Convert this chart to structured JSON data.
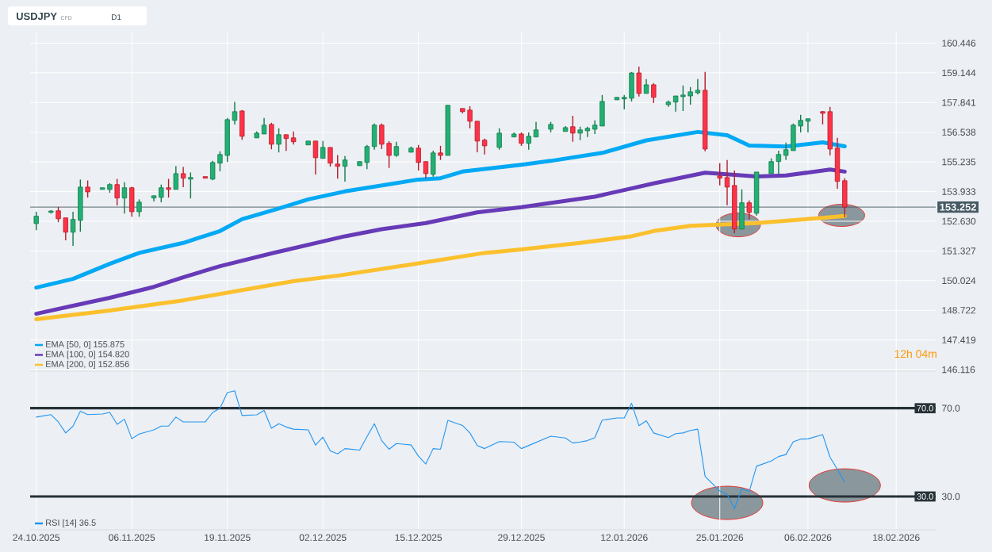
{
  "chart_data": [
    {
      "type": "candlestick",
      "title": "USDJPY",
      "subtitle": "CFD",
      "annotations": [
        "D1",
        "12h 04m"
      ],
      "x": [
        "2025-10-24",
        "2025-10-26",
        "2025-10-27",
        "2025-10-28",
        "2025-10-29",
        "2025-10-30",
        "2025-10-31",
        "2025-11-02",
        "2025-11-03",
        "2025-11-04",
        "2025-11-05",
        "2025-11-06",
        "2025-11-07",
        "2025-11-09",
        "2025-11-10",
        "2025-11-11",
        "2025-11-12",
        "2025-11-13",
        "2025-11-14",
        "2025-11-16",
        "2025-11-17",
        "2025-11-18",
        "2025-11-19",
        "2025-11-20",
        "2025-11-21",
        "2025-11-23",
        "2025-11-24",
        "2025-11-25",
        "2025-11-26",
        "2025-11-27",
        "2025-11-28",
        "2025-11-30",
        "2025-12-01",
        "2025-12-02",
        "2025-12-03",
        "2025-12-04",
        "2025-12-05",
        "2025-12-07",
        "2025-12-08",
        "2025-12-09",
        "2025-12-10",
        "2025-12-11",
        "2025-12-12",
        "2025-12-14",
        "2025-12-15",
        "2025-12-16",
        "2025-12-17",
        "2025-12-18",
        "2025-12-19",
        "2025-12-21",
        "2025-12-22",
        "2025-12-23",
        "2025-12-24",
        "2025-12-26",
        "2025-12-28",
        "2025-12-29",
        "2025-12-30",
        "2025-12-31",
        "2026-01-02",
        "2026-01-04",
        "2026-01-05",
        "2026-01-06",
        "2026-01-07",
        "2026-01-08",
        "2026-01-09",
        "2026-01-11",
        "2026-01-12",
        "2026-01-13",
        "2026-01-14",
        "2026-01-15",
        "2026-01-16",
        "2026-01-18",
        "2026-01-19",
        "2026-01-20",
        "2026-01-21",
        "2026-01-22",
        "2026-01-23",
        "2026-01-25",
        "2026-01-26",
        "2026-01-27",
        "2026-01-28",
        "2026-01-29",
        "2026-01-30",
        "2026-02-01",
        "2026-02-02",
        "2026-02-03",
        "2026-02-04",
        "2026-02-05",
        "2026-02-06",
        "2026-02-08",
        "2026-02-09",
        "2026-02-10",
        "2026-02-11"
      ],
      "ohlc": [
        [
          152.53,
          153.05,
          152.24,
          152.85
        ],
        [
          153.02,
          153.12,
          152.97,
          153.08
        ],
        [
          153.09,
          153.26,
          152.59,
          152.74
        ],
        [
          152.78,
          152.78,
          151.79,
          152.15
        ],
        [
          152.15,
          153.05,
          151.55,
          152.71
        ],
        [
          152.67,
          154.46,
          152.17,
          154.13
        ],
        [
          154.13,
          154.42,
          153.67,
          153.92
        ],
        [
          154.03,
          154.1,
          154.03,
          154.1
        ],
        [
          154.03,
          154.3,
          153.88,
          154.24
        ],
        [
          154.24,
          154.49,
          153.32,
          153.65
        ],
        [
          153.65,
          154.34,
          152.97,
          154.1
        ],
        [
          154.1,
          154.14,
          152.83,
          153.05
        ],
        [
          153.05,
          153.59,
          152.83,
          153.47
        ],
        [
          153.65,
          153.75,
          153.5,
          153.75
        ],
        [
          153.68,
          154.24,
          153.46,
          154.1
        ],
        [
          154.1,
          154.49,
          153.67,
          154.03
        ],
        [
          154.03,
          155.05,
          154.03,
          154.72
        ],
        [
          154.72,
          155.01,
          154.13,
          154.52
        ],
        [
          154.48,
          154.77,
          153.63,
          154.55
        ],
        [
          154.59,
          154.59,
          154.52,
          154.52
        ],
        [
          154.48,
          155.28,
          154.43,
          155.21
        ],
        [
          155.18,
          155.7,
          154.82,
          155.56
        ],
        [
          155.52,
          157.16,
          155.23,
          157.09
        ],
        [
          157.06,
          157.87,
          156.88,
          157.44
        ],
        [
          157.47,
          157.51,
          156.21,
          156.36
        ],
        [
          156.29,
          156.57,
          156.29,
          156.5
        ],
        [
          156.46,
          157.16,
          156.46,
          156.85
        ],
        [
          156.88,
          156.95,
          155.79,
          156.01
        ],
        [
          156.01,
          156.71,
          155.65,
          156.43
        ],
        [
          156.43,
          156.43,
          155.72,
          156.26
        ],
        [
          156.29,
          156.57,
          156.0,
          156.12
        ],
        [
          155.98,
          156.15,
          155.98,
          156.15
        ],
        [
          156.15,
          156.15,
          154.68,
          155.42
        ],
        [
          155.39,
          156.15,
          155.39,
          155.87
        ],
        [
          155.87,
          155.87,
          155.03,
          155.18
        ],
        [
          155.14,
          155.54,
          154.5,
          155.04
        ],
        [
          155.04,
          155.49,
          154.37,
          155.32
        ],
        [
          155.07,
          155.25,
          155.07,
          155.25
        ],
        [
          155.21,
          155.98,
          154.92,
          155.91
        ],
        [
          155.91,
          156.92,
          155.77,
          156.85
        ],
        [
          156.85,
          156.92,
          155.8,
          156.01
        ],
        [
          156.05,
          156.15,
          154.97,
          155.52
        ],
        [
          155.52,
          156.12,
          155.46,
          155.91
        ],
        [
          155.66,
          155.91,
          155.66,
          155.84
        ],
        [
          155.84,
          155.98,
          154.86,
          155.21
        ],
        [
          155.25,
          155.25,
          154.52,
          154.72
        ],
        [
          154.69,
          155.73,
          154.59,
          155.63
        ],
        [
          155.63,
          155.94,
          155.32,
          155.52
        ],
        [
          155.52,
          157.72,
          155.52,
          157.72
        ],
        [
          157.58,
          157.58,
          157.37,
          157.44
        ],
        [
          157.51,
          157.68,
          156.71,
          157.02
        ],
        [
          157.02,
          157.02,
          155.66,
          156.15
        ],
        [
          156.19,
          156.26,
          155.56,
          155.94
        ],
        [
          155.87,
          156.71,
          155.77,
          156.5
        ],
        [
          156.33,
          156.53,
          156.33,
          156.46
        ],
        [
          156.46,
          156.53,
          155.94,
          156.05
        ],
        [
          156.05,
          156.53,
          155.77,
          156.36
        ],
        [
          156.33,
          156.99,
          156.33,
          156.64
        ],
        [
          156.67,
          156.99,
          156.53,
          156.88
        ],
        [
          156.57,
          156.81,
          156.57,
          156.74
        ],
        [
          156.78,
          157.26,
          156.12,
          156.5
        ],
        [
          156.5,
          156.78,
          156.19,
          156.64
        ],
        [
          156.6,
          156.78,
          156.33,
          156.71
        ],
        [
          156.67,
          157.06,
          156.46,
          156.85
        ],
        [
          156.81,
          158.17,
          156.81,
          157.89
        ],
        [
          157.96,
          158.07,
          157.96,
          158.07
        ],
        [
          158.0,
          158.17,
          157.54,
          158.07
        ],
        [
          158.03,
          159.18,
          157.89,
          159.14
        ],
        [
          159.14,
          159.42,
          158.1,
          158.24
        ],
        [
          158.24,
          158.87,
          158.24,
          158.62
        ],
        [
          158.62,
          158.69,
          157.82,
          158.07
        ],
        [
          157.75,
          157.93,
          157.65,
          157.86
        ],
        [
          157.86,
          158.13,
          157.44,
          158.13
        ],
        [
          158.1,
          158.59,
          157.47,
          158.17
        ],
        [
          158.13,
          158.52,
          157.75,
          158.31
        ],
        [
          158.27,
          158.87,
          158.2,
          158.38
        ],
        [
          158.38,
          159.18,
          155.7,
          155.8
        ],
        [
          154.62,
          155.18,
          154.2,
          154.52
        ],
        [
          154.55,
          155.32,
          153.33,
          154.13
        ],
        [
          154.2,
          154.86,
          152.11,
          152.29
        ],
        [
          152.29,
          154.03,
          152.29,
          153.44
        ],
        [
          153.44,
          153.54,
          152.71,
          153.02
        ],
        [
          152.98,
          154.79,
          152.88,
          154.79
        ],
        [
          154.72,
          155.39,
          154.72,
          155.25
        ],
        [
          155.25,
          155.73,
          154.72,
          155.56
        ],
        [
          155.52,
          156.08,
          155.32,
          155.77
        ],
        [
          155.73,
          156.92,
          155.73,
          156.85
        ],
        [
          156.81,
          157.3,
          156.53,
          157.06
        ],
        [
          157.02,
          157.13,
          156.53,
          157.13
        ],
        [
          157.44,
          157.47,
          156.88,
          157.37
        ],
        [
          157.44,
          157.65,
          155.52,
          155.8
        ],
        [
          155.84,
          156.29,
          154.06,
          154.38
        ],
        [
          154.41,
          154.52,
          152.81,
          153.252
        ]
      ],
      "series": [
        {
          "name": "EMA [50, 0] 155.875",
          "color": "#03a9f4",
          "type": "line",
          "x": [
            "2025-10-24",
            "2025-10-29",
            "2025-11-03",
            "2025-11-07",
            "2025-11-13",
            "2025-11-18",
            "2025-11-21",
            "2025-11-26",
            "2025-11-30",
            "2025-12-05",
            "2025-12-15",
            "2025-12-18",
            "2025-12-21",
            "2025-12-29",
            "2026-01-02",
            "2026-01-09",
            "2026-01-15",
            "2026-01-22",
            "2026-01-26",
            "2026-01-29",
            "2026-02-03",
            "2026-02-08",
            "2026-02-11"
          ],
          "values": [
            149.72,
            150.1,
            150.76,
            151.24,
            151.68,
            152.2,
            152.72,
            153.19,
            153.59,
            153.94,
            154.46,
            154.52,
            154.81,
            155.11,
            155.28,
            155.63,
            156.18,
            156.55,
            156.41,
            155.95,
            155.91,
            156.09,
            155.92
          ]
        },
        {
          "name": "EMA [100, 0] 154.820",
          "color": "#673ab7",
          "type": "line",
          "x": [
            "2025-10-24",
            "2025-10-29",
            "2025-11-03",
            "2025-11-09",
            "2025-11-13",
            "2025-11-18",
            "2025-11-25",
            "2025-12-05",
            "2025-12-10",
            "2025-12-16",
            "2025-12-23",
            "2025-12-29",
            "2026-01-08",
            "2026-01-12",
            "2026-01-16",
            "2026-01-23",
            "2026-01-30",
            "2026-02-03",
            "2026-02-09",
            "2026-02-11"
          ],
          "values": [
            148.57,
            148.92,
            149.27,
            149.75,
            150.17,
            150.66,
            151.22,
            151.97,
            152.28,
            152.55,
            153.02,
            153.25,
            153.71,
            154.0,
            154.29,
            154.76,
            154.6,
            154.64,
            154.9,
            154.81
          ]
        },
        {
          "name": "EMA [200, 0] 152.856",
          "color": "#fbc02d",
          "type": "line",
          "x": [
            "2025-10-24",
            "2025-11-03",
            "2025-11-13",
            "2025-11-18",
            "2025-11-28",
            "2025-12-04",
            "2025-12-14",
            "2025-12-24",
            "2025-12-29",
            "2026-01-06",
            "2026-01-13",
            "2026-01-16",
            "2026-01-21",
            "2026-01-30",
            "2026-02-08",
            "2026-02-11"
          ],
          "values": [
            148.33,
            148.71,
            149.16,
            149.44,
            150.0,
            150.24,
            150.73,
            151.24,
            151.39,
            151.68,
            151.97,
            152.2,
            152.43,
            152.55,
            152.78,
            152.86
          ]
        }
      ],
      "xlim": [
        "2025-10-23T04:00",
        "2026-02-23T09:00"
      ],
      "xticks": [
        "2025-10-24",
        "2025-11-06",
        "2025-11-19",
        "2025-12-02",
        "2025-12-15",
        "2025-12-29",
        "2026-01-12",
        "2026-01-25",
        "2026-02-06",
        "2026-02-18"
      ],
      "ylim": [
        146.05,
        160.95
      ],
      "yticks": [
        146.116,
        147.419,
        148.722,
        150.024,
        151.327,
        {
          "value": 152.63,
          "label": "152.630"
        },
        153.933,
        155.235,
        156.538,
        157.841,
        159.144,
        160.446
      ],
      "ref_lines": [
        {
          "axis": "y",
          "value": 153.252,
          "label": "153.252",
          "color": "#455a64"
        }
      ],
      "grid": true,
      "legend": "bottom left",
      "tick_labels": "y"
    },
    {
      "type": "line",
      "series": [
        {
          "name": "RSI [14] 36.5",
          "color": "#2196f3",
          "x": [
            "2025-10-24",
            "2025-10-26",
            "2025-10-27",
            "2025-10-28",
            "2025-10-29",
            "2025-10-30",
            "2025-10-31",
            "2025-11-02",
            "2025-11-03",
            "2025-11-04",
            "2025-11-05",
            "2025-11-06",
            "2025-11-07",
            "2025-11-09",
            "2025-11-10",
            "2025-11-11",
            "2025-11-12",
            "2025-11-13",
            "2025-11-14",
            "2025-11-16",
            "2025-11-17",
            "2025-11-18",
            "2025-11-19",
            "2025-11-20",
            "2025-11-21",
            "2025-11-23",
            "2025-11-24",
            "2025-11-25",
            "2025-11-26",
            "2025-11-27",
            "2025-11-28",
            "2025-11-30",
            "2025-12-01",
            "2025-12-02",
            "2025-12-03",
            "2025-12-04",
            "2025-12-05",
            "2025-12-07",
            "2025-12-08",
            "2025-12-09",
            "2025-12-10",
            "2025-12-11",
            "2025-12-12",
            "2025-12-14",
            "2025-12-15",
            "2025-12-16",
            "2025-12-17",
            "2025-12-18",
            "2025-12-19",
            "2025-12-21",
            "2025-12-22",
            "2025-12-23",
            "2025-12-24",
            "2025-12-26",
            "2025-12-28",
            "2025-12-29",
            "2026-01-02",
            "2026-01-04",
            "2026-01-05",
            "2026-01-06",
            "2026-01-07",
            "2026-01-08",
            "2026-01-09",
            "2026-01-11",
            "2026-01-12",
            "2026-01-13",
            "2026-01-14",
            "2026-01-15",
            "2026-01-16",
            "2026-01-18",
            "2026-01-19",
            "2026-01-20",
            "2026-01-21",
            "2026-01-22",
            "2026-01-23",
            "2026-01-25",
            "2026-01-26",
            "2026-01-27",
            "2026-01-28",
            "2026-01-29",
            "2026-01-30",
            "2026-02-01",
            "2026-02-02",
            "2026-02-03",
            "2026-02-04",
            "2026-02-05",
            "2026-02-06",
            "2026-02-08",
            "2026-02-09",
            "2026-02-10",
            "2026-02-11"
          ],
          "values": [
            66.0,
            67.1,
            63.8,
            58.8,
            61.9,
            68.6,
            67.1,
            67.4,
            68.1,
            62.7,
            65.0,
            56.2,
            58.3,
            60.2,
            61.9,
            61.9,
            66.0,
            63.8,
            63.8,
            63.8,
            68.1,
            70.0,
            77.1,
            77.9,
            66.7,
            67.0,
            69.0,
            60.9,
            63.0,
            61.5,
            60.5,
            60.2,
            53.3,
            56.9,
            50.7,
            49.3,
            51.7,
            51.0,
            57.1,
            63.0,
            55.3,
            51.4,
            54.0,
            53.3,
            48.3,
            44.7,
            51.7,
            51.4,
            64.5,
            62.2,
            58.8,
            53.1,
            51.7,
            54.9,
            54.6,
            51.7,
            57.3,
            56.5,
            54.2,
            54.7,
            55.3,
            56.7,
            64.6,
            65.6,
            65.6,
            72.2,
            62.1,
            64.3,
            58.8,
            56.7,
            58.5,
            58.8,
            59.9,
            60.5,
            39.1,
            32.5,
            31.0,
            24.5,
            33.5,
            32.2,
            43.7,
            46.1,
            48.1,
            49.0,
            54.8,
            56.0,
            56.1,
            58.0,
            47.8,
            42.3,
            36.5
          ]
        }
      ],
      "xlim": [
        "2025-10-23T04:00",
        "2026-02-23T09:00"
      ],
      "xticks": [
        {
          "value": "2025-10-24",
          "label": "24.10.2025"
        },
        {
          "value": "2025-11-06",
          "label": "06.11.2025"
        },
        {
          "value": "2025-11-19",
          "label": "19.11.2025"
        },
        {
          "value": "2025-12-02",
          "label": "02.12.2025"
        },
        {
          "value": "2025-12-15",
          "label": "15.12.2025"
        },
        {
          "value": "2025-12-29",
          "label": "29.12.2025"
        },
        {
          "value": "2026-01-12",
          "label": "12.01.2026"
        },
        {
          "value": "2026-01-25",
          "label": "25.01.2026"
        },
        {
          "value": "2026-02-06",
          "label": "06.02.2026"
        },
        {
          "value": "2026-02-18",
          "label": "18.02.2026"
        }
      ],
      "ylim": [
        14.9,
        86.8
      ],
      "yticks": [
        {
          "value": 30,
          "label": "30.0"
        },
        {
          "value": 70,
          "label": "70.0"
        }
      ],
      "ref_lines": [
        {
          "axis": "y",
          "value": 70,
          "label": "70.0",
          "color": "#263238"
        },
        {
          "axis": "y",
          "value": 30,
          "label": "30.0",
          "color": "#263238"
        }
      ],
      "grid": "x",
      "legend": "bottom left"
    }
  ]
}
